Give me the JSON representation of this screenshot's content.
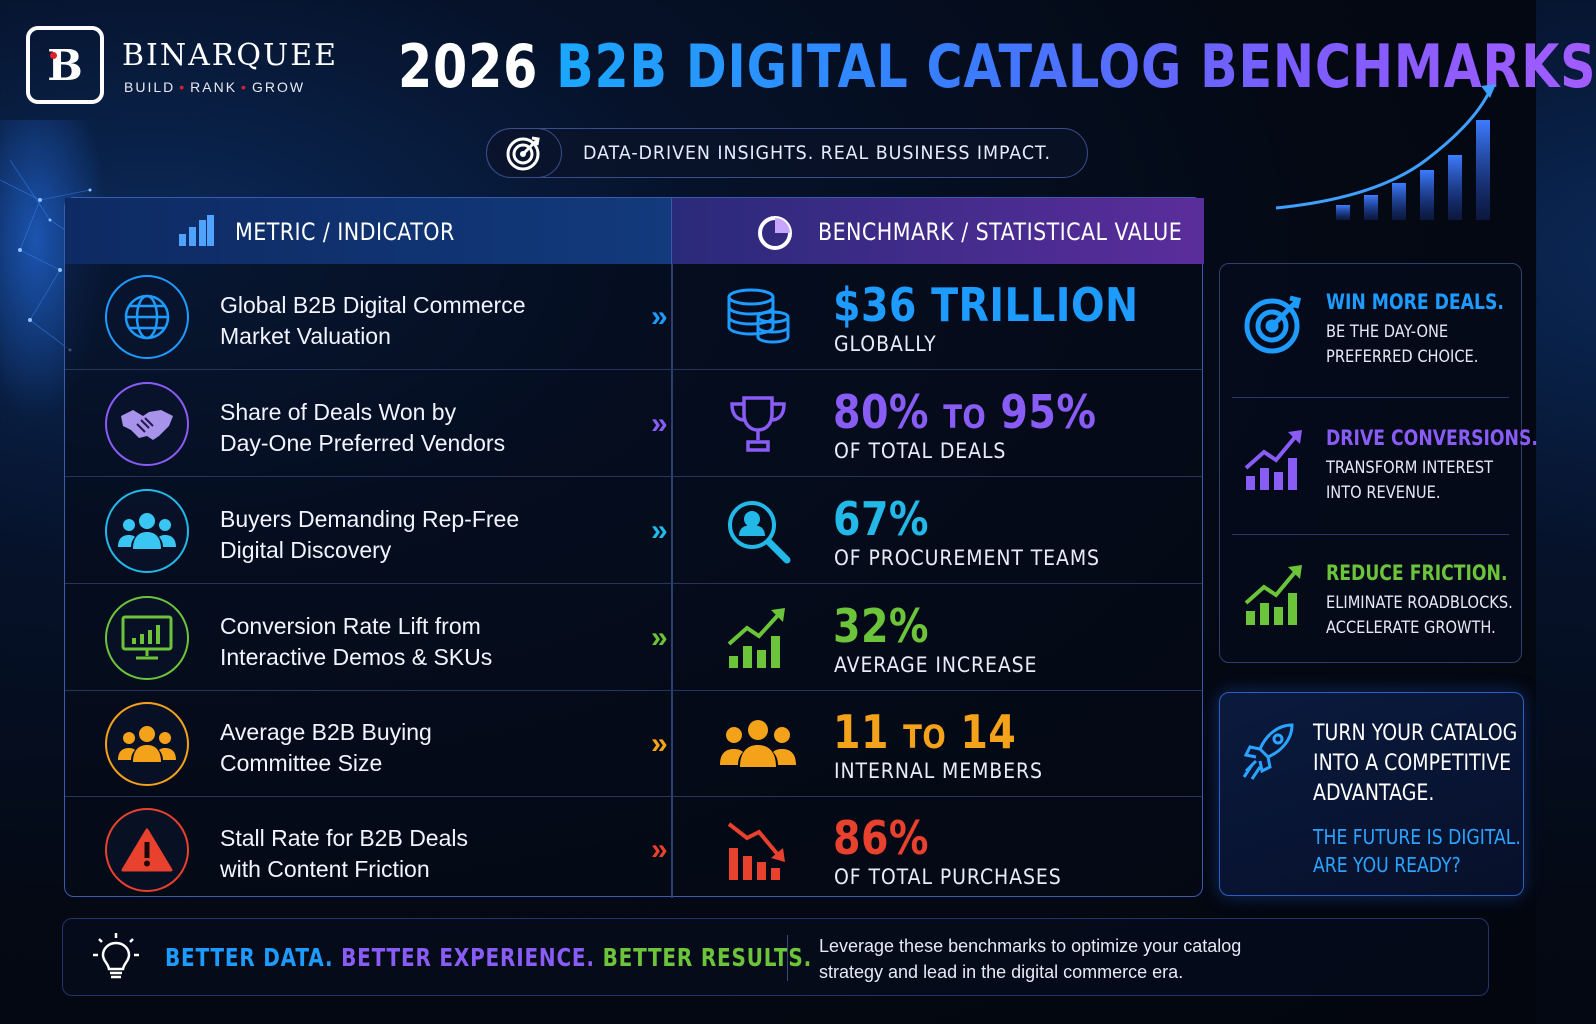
{
  "brand": {
    "mark": "B",
    "name": "BINARQUEE",
    "tag_parts": [
      "BUILD",
      "RANK",
      "GROW"
    ],
    "tag_sep": "•"
  },
  "title": {
    "year": "2026",
    "rest": "B2B DIGITAL CATALOG BENCHMARKS"
  },
  "subtitle": "DATA-DRIVEN INSIGHTS. REAL BUSINESS IMPACT.",
  "table": {
    "col_metric": "METRIC / INDICATOR",
    "col_value": "BENCHMARK / STATISTICAL VALUE",
    "rows": [
      {
        "metric_line1": "Global B2B Digital Commerce",
        "metric_line2": "Market Valuation",
        "value_a": "$36 TRILLION",
        "value_to": "",
        "value_b": "",
        "sub": "GLOBALLY",
        "color": "#1e9bff",
        "icon": "globe-icon",
        "value_icon": "coin-stack-icon"
      },
      {
        "metric_line1": "Share of Deals Won by",
        "metric_line2": "Day-One Preferred Vendors",
        "value_a": "80%",
        "value_to": "TO",
        "value_b": "95%",
        "sub": "OF TOTAL DEALS",
        "color": "#8a5cf6",
        "icon": "handshake-icon",
        "value_icon": "trophy-icon"
      },
      {
        "metric_line1": "Buyers Demanding Rep-Free",
        "metric_line2": "Digital Discovery",
        "value_a": "67%",
        "value_to": "",
        "value_b": "",
        "sub": "OF PROCUREMENT TEAMS",
        "color": "#22b8e8",
        "icon": "users-icon",
        "value_icon": "search-user-icon"
      },
      {
        "metric_line1": "Conversion Rate Lift from",
        "metric_line2": "Interactive Demos & SKUs",
        "value_a": "32%",
        "value_to": "",
        "value_b": "",
        "sub": "AVERAGE INCREASE",
        "color": "#6cc43a",
        "icon": "monitor-chart-icon",
        "value_icon": "growth-chart-icon"
      },
      {
        "metric_line1": "Average B2B Buying",
        "metric_line2": "Committee Size",
        "value_a": "11",
        "value_to": "TO",
        "value_b": "14",
        "sub": "INTERNAL MEMBERS",
        "color": "#f5a21b",
        "icon": "team-icon",
        "value_icon": "group-icon"
      },
      {
        "metric_line1": "Stall Rate for B2B Deals",
        "metric_line2": "with Content Friction",
        "value_a": "86%",
        "value_to": "",
        "value_b": "",
        "sub": "OF TOTAL PURCHASES",
        "color": "#e8412e",
        "icon": "warning-icon",
        "value_icon": "decline-chart-icon"
      }
    ]
  },
  "side": [
    {
      "head": "WIN MORE DEALS.",
      "line1": "BE THE DAY-ONE",
      "line2": "PREFERRED CHOICE.",
      "color": "#1e9bff",
      "icon": "target-icon"
    },
    {
      "head": "DRIVE CONVERSIONS.",
      "line1": "TRANSFORM INTEREST",
      "line2": "INTO REVENUE.",
      "color": "#8a5cf6",
      "icon": "growth-chart-icon"
    },
    {
      "head": "REDUCE FRICTION.",
      "line1": "ELIMINATE ROADBLOCKS.",
      "line2": "ACCELERATE GROWTH.",
      "color": "#6cc43a",
      "icon": "growth-chart-icon"
    }
  ],
  "cta": {
    "line1": "TURN YOUR CATALOG",
    "line2": "INTO A COMPETITIVE",
    "line3": "ADVANTAGE.",
    "sub1": "THE FUTURE IS DIGITAL.",
    "sub2": "ARE YOU READY?",
    "icon": "rocket-icon"
  },
  "footer": {
    "tag1": "BETTER DATA.",
    "tag2": "BETTER EXPERIENCE.",
    "tag3": "BETTER RESULTS.",
    "text_line1": "Leverage these benchmarks to optimize your catalog",
    "text_line2": "strategy and lead in the digital commerce era.",
    "icon": "lightbulb-icon"
  },
  "colors": {
    "blue": "#1e9bff",
    "purple": "#8a5cf6",
    "cyan": "#22b8e8",
    "green": "#6cc43a",
    "orange": "#f5a21b",
    "red": "#e8412e"
  }
}
